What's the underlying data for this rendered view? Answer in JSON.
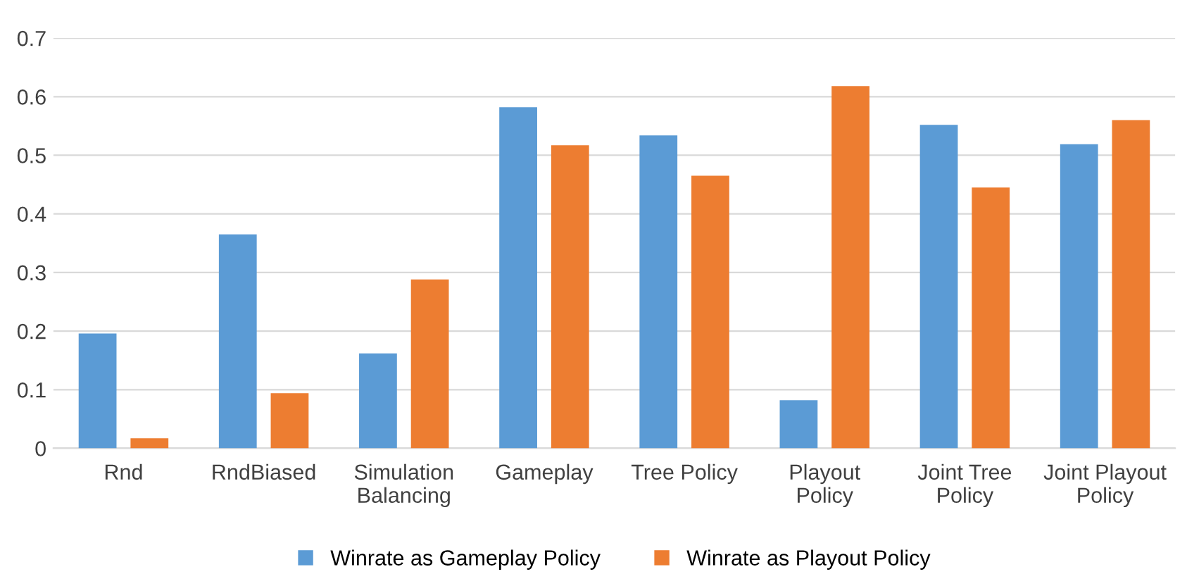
{
  "chart_data": {
    "type": "bar",
    "categories": [
      "Rnd",
      "RndBiased",
      "Simulation\nBalancing",
      "Gameplay",
      "Tree Policy",
      "Playout\nPolicy",
      "Joint Tree\nPolicy",
      "Joint Playout\nPolicy"
    ],
    "series": [
      {
        "name": "Winrate as Gameplay Policy",
        "color": "#5b9bd5",
        "values": [
          0.196,
          0.365,
          0.162,
          0.582,
          0.534,
          0.082,
          0.552,
          0.519
        ]
      },
      {
        "name": "Winrate as Playout Policy",
        "color": "#ed7d31",
        "values": [
          0.017,
          0.094,
          0.288,
          0.517,
          0.465,
          0.618,
          0.445,
          0.56
        ]
      }
    ],
    "ylim": [
      0,
      0.7
    ],
    "yticks": [
      {
        "value": 0,
        "label": "0"
      },
      0.1,
      0.2,
      0.3,
      0.4,
      0.5,
      0.6,
      0.7
    ],
    "grid": "y",
    "legend": "bottom"
  }
}
